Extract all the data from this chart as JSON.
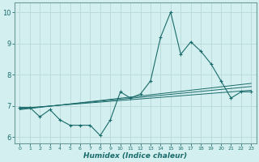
{
  "title": "",
  "xlabel": "Humidex (Indice chaleur)",
  "ylabel": "",
  "bg_color": "#d4efef",
  "grid_color": "#b8d8d8",
  "line_color": "#1a6b6b",
  "spine_color": "#6a9a9a",
  "xlim": [
    -0.5,
    23.5
  ],
  "ylim": [
    5.8,
    10.3
  ],
  "yticks": [
    6,
    7,
    8,
    9,
    10
  ],
  "xticks": [
    0,
    1,
    2,
    3,
    4,
    5,
    6,
    7,
    8,
    9,
    10,
    11,
    12,
    13,
    14,
    15,
    16,
    17,
    18,
    19,
    20,
    21,
    22,
    23
  ],
  "main_series_x": [
    0,
    1,
    2,
    3,
    4,
    5,
    6,
    7,
    8,
    9,
    10,
    11,
    12,
    13,
    14,
    15,
    16,
    17,
    18,
    19,
    20,
    21,
    22,
    23
  ],
  "main_series_y": [
    6.95,
    6.95,
    6.65,
    6.88,
    6.55,
    6.38,
    6.38,
    6.38,
    6.05,
    6.55,
    7.45,
    7.25,
    7.38,
    7.8,
    9.2,
    10.0,
    8.65,
    9.05,
    8.75,
    8.35,
    7.8,
    7.25,
    7.45,
    7.45
  ],
  "regression_lines": [
    {
      "x": [
        0,
        23
      ],
      "y": [
        6.92,
        7.5
      ]
    },
    {
      "x": [
        0,
        23
      ],
      "y": [
        6.9,
        7.62
      ]
    },
    {
      "x": [
        0,
        23
      ],
      "y": [
        6.88,
        7.72
      ]
    }
  ]
}
